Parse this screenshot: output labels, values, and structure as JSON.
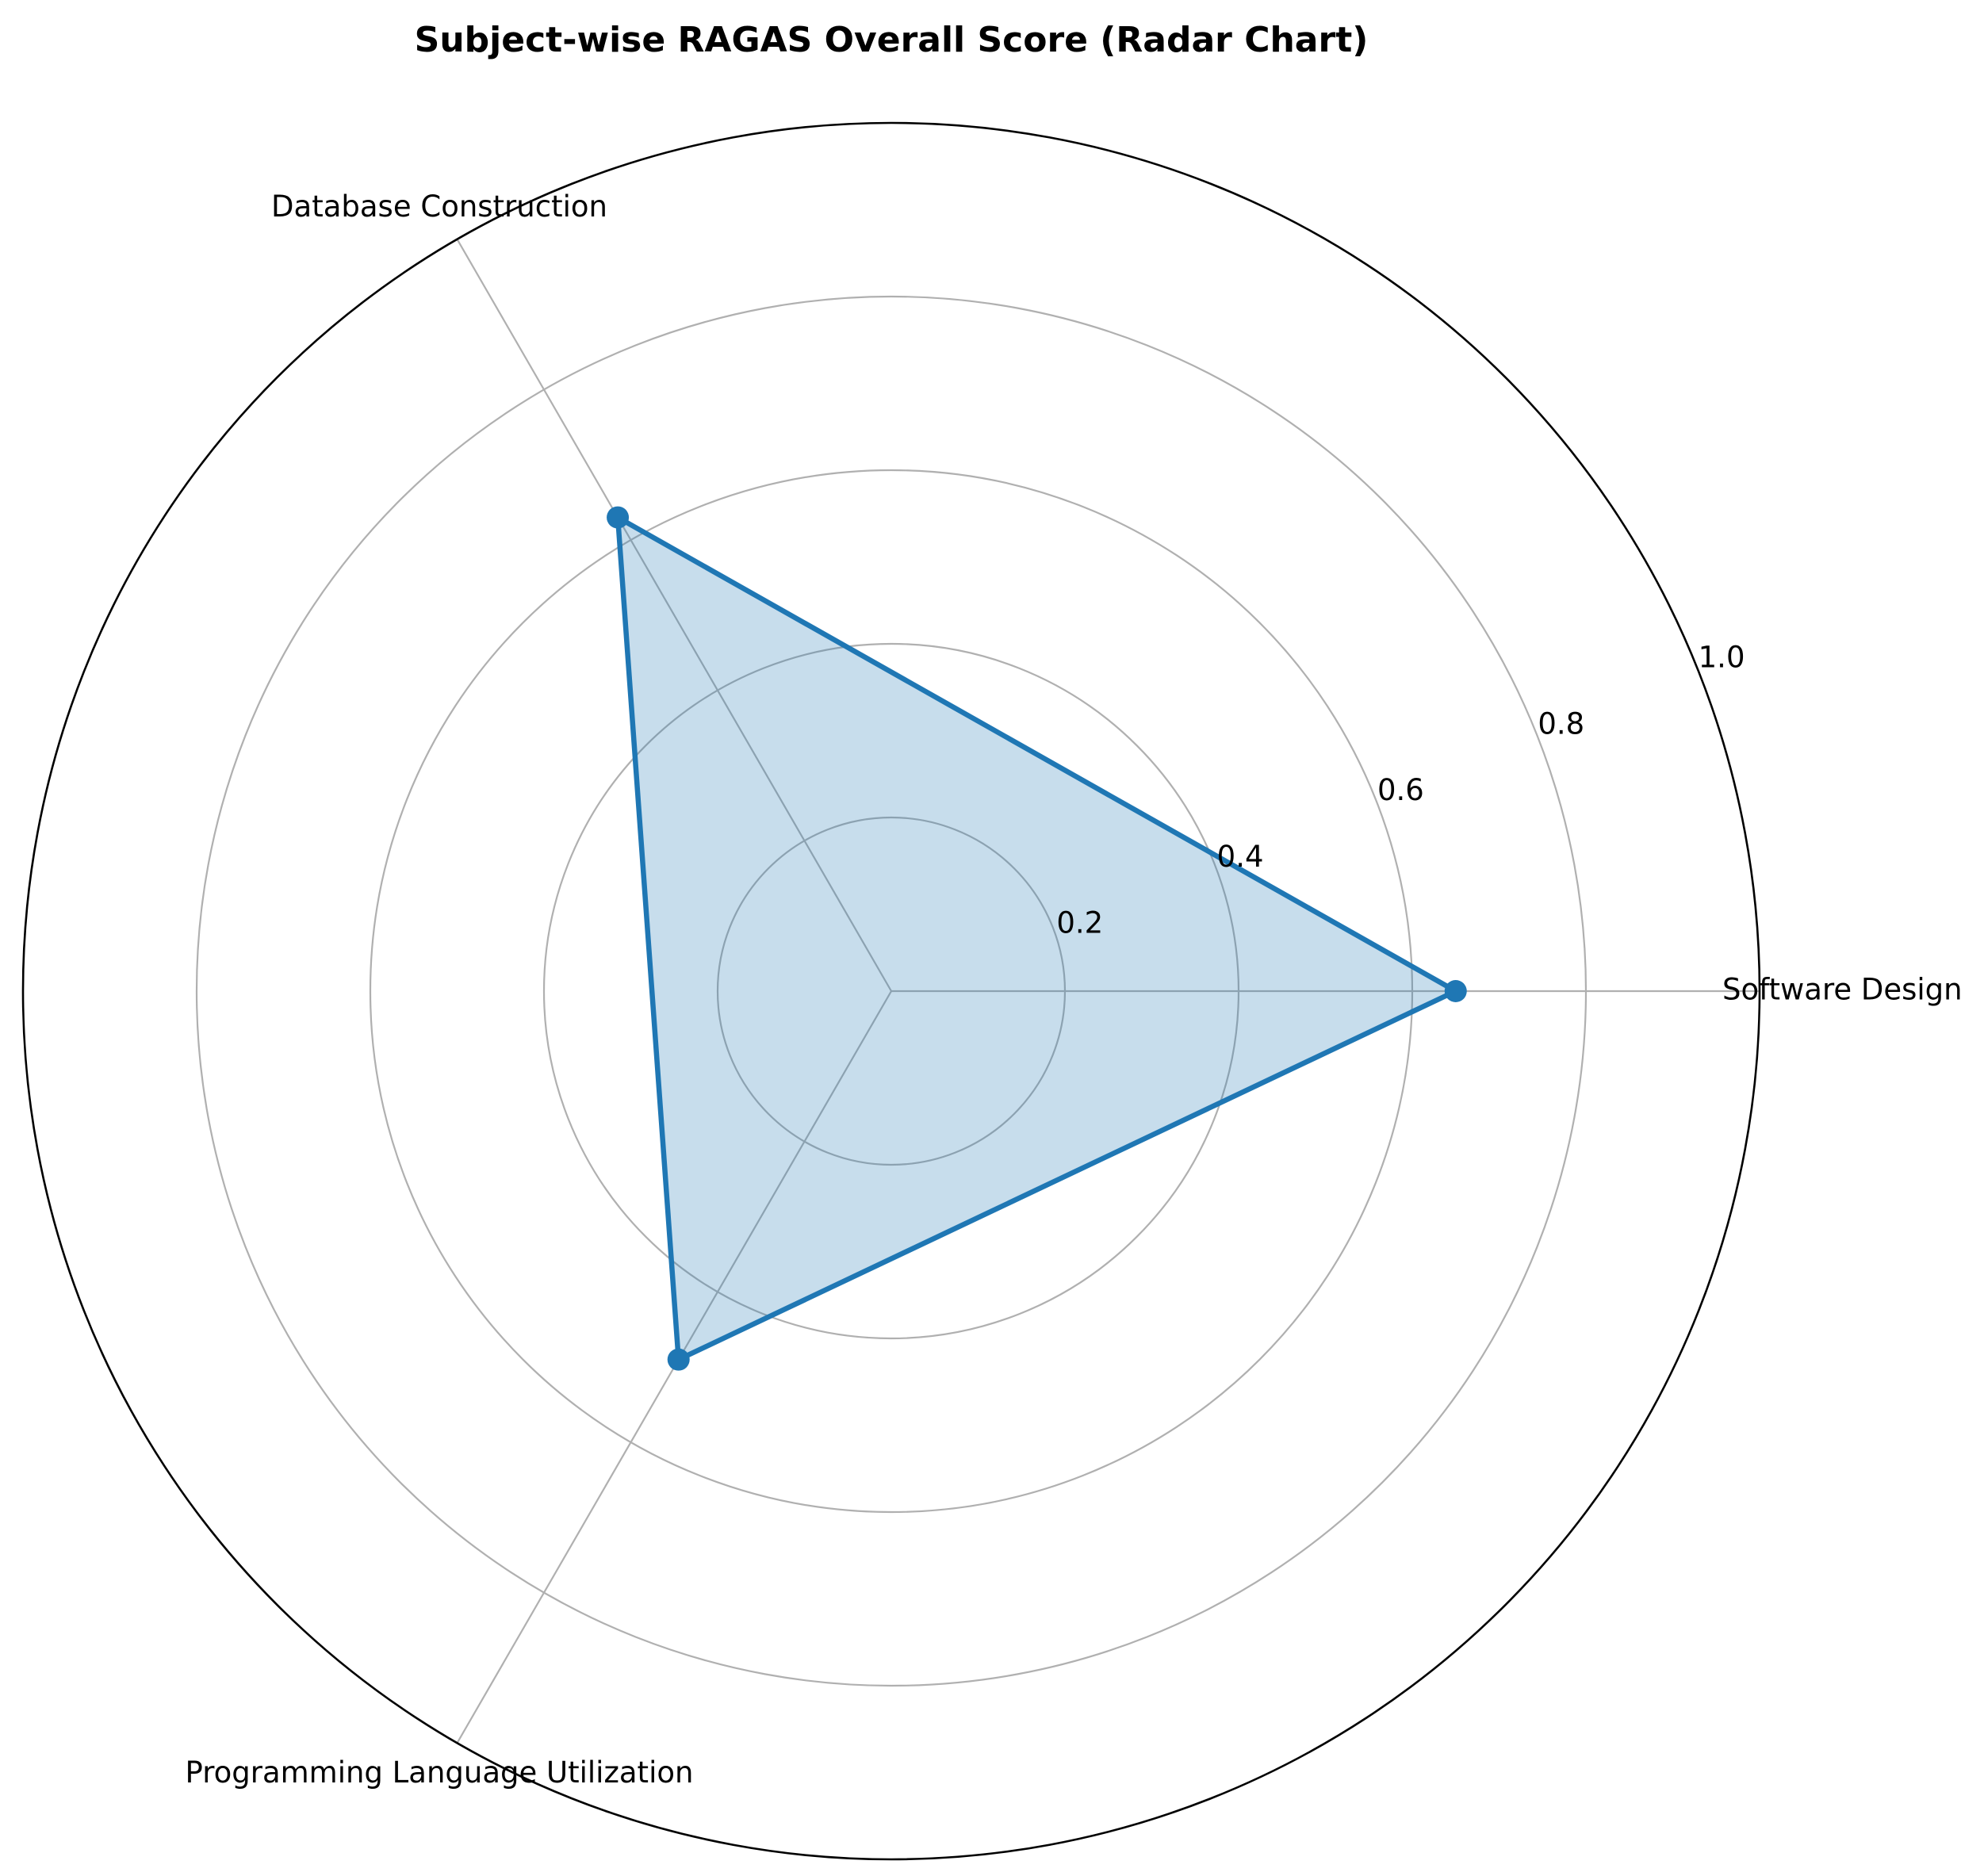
{
  "chart_data": {
    "type": "radar",
    "title": "Subject-wise RAGAS Overall Score (Radar Chart)",
    "categories": [
      "Software Design",
      "Database Construction",
      "Programming Language Utilization"
    ],
    "series": [
      {
        "values": [
          0.65,
          0.63,
          0.49
        ]
      }
    ],
    "rlim": [
      0,
      1.0
    ],
    "r_ticks": [
      0.2,
      0.4,
      0.6,
      0.8,
      1.0
    ],
    "r_tick_labels": [
      "0.2",
      "0.4",
      "0.6",
      "0.8",
      "1.0"
    ],
    "grid": true,
    "colors": {
      "line": "#1f77b4",
      "fill": "#1f77b4",
      "grid": "#b0b0b0",
      "frame": "#000000"
    }
  }
}
